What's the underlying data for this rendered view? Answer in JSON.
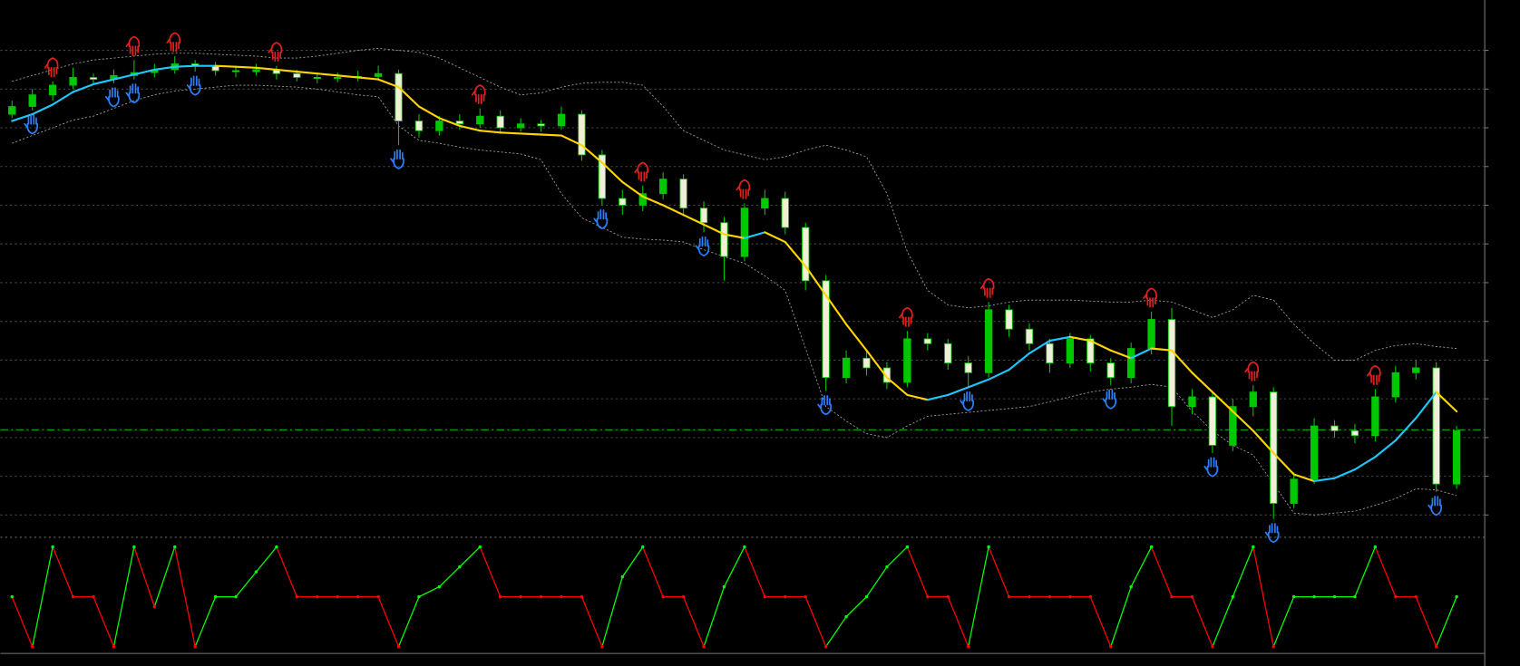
{
  "chart_data": [
    {
      "type": "candlestick",
      "ylim": [
        1.08,
        1.1072
      ],
      "yticks": [
        1.081,
        1.083,
        1.085,
        1.087,
        1.089,
        1.091,
        1.093,
        1.095,
        1.097,
        1.099,
        1.101,
        1.103,
        1.105
      ],
      "grid": true,
      "up_color": "#00c800",
      "down_color": "#f0f0d8",
      "wick_color": "#00c800",
      "open": [
        1.1017,
        1.1021,
        1.1027,
        1.1032,
        1.1036,
        1.1035,
        1.1037,
        1.10385,
        1.104,
        1.1043,
        1.1042,
        1.10395,
        1.1039,
        1.104,
        1.1038,
        1.1036,
        1.10355,
        1.1036,
        1.10365,
        1.1038,
        1.10135,
        1.10085,
        1.10135,
        1.1012,
        1.1016,
        1.101,
        1.1012,
        1.1011,
        1.1017,
        1.0996,
        1.09735,
        1.097,
        1.0976,
        1.09835,
        1.09685,
        1.0961,
        1.09435,
        1.09685,
        1.09735,
        1.09585,
        1.0931,
        1.0881,
        1.0891,
        1.0886,
        1.08785,
        1.0901,
        1.08985,
        1.08885,
        1.08835,
        1.0916,
        1.0906,
        1.08985,
        1.08885,
        1.0901,
        1.08885,
        1.0881,
        1.0896,
        1.0911,
        1.0866,
        1.0871,
        1.0846,
        1.0866,
        1.08735,
        1.0816,
        1.08285,
        1.0856,
        1.08535,
        1.0851,
        1.0871,
        1.08835,
        1.0886,
        1.0826
      ],
      "high": [
        1.1024,
        1.103,
        1.1034,
        1.1041,
        1.1038,
        1.104,
        1.1045,
        1.1043,
        1.1047,
        1.1045,
        1.1044,
        1.1042,
        1.1043,
        1.1042,
        1.104,
        1.1038,
        1.10385,
        1.10395,
        1.1042,
        1.104,
        1.1017,
        1.1016,
        1.1017,
        1.102,
        1.1019,
        1.1015,
        1.1014,
        1.1021,
        1.1019,
        1.09985,
        1.0978,
        1.098,
        1.0987,
        1.0986,
        1.0972,
        1.0964,
        1.0971,
        1.0978,
        1.0977,
        1.0961,
        1.0934,
        1.0895,
        1.0895,
        1.0889,
        1.0905,
        1.0904,
        1.0901,
        1.0892,
        1.092,
        1.09185,
        1.0909,
        1.0901,
        1.0904,
        1.0903,
        1.0891,
        1.0899,
        1.0915,
        1.0917,
        1.0875,
        1.0874,
        1.087,
        1.0877,
        1.0876,
        1.0832,
        1.086,
        1.0859,
        1.0857,
        1.0875,
        1.0887,
        1.089,
        1.0889,
        1.0856
      ],
      "low": [
        1.1015,
        1.1019,
        1.1024,
        1.103,
        1.1032,
        1.1033,
        1.1035,
        1.1036,
        1.1038,
        1.1039,
        1.1037,
        1.1036,
        1.1037,
        1.1035,
        1.1034,
        1.1033,
        1.10335,
        1.1034,
        1.1035,
        1.1001,
        1.1005,
        1.1006,
        1.1009,
        1.101,
        1.1008,
        1.1008,
        1.1008,
        1.1009,
        1.0993,
        1.097,
        1.0965,
        1.0967,
        1.0973,
        1.0965,
        1.0956,
        1.0931,
        1.0941,
        1.0965,
        1.0955,
        1.0926,
        1.0874,
        1.0878,
        1.0882,
        1.0875,
        1.0876,
        1.0895,
        1.0885,
        1.0876,
        1.0881,
        1.0902,
        1.0895,
        1.08835,
        1.0886,
        1.0884,
        1.0877,
        1.0878,
        1.0893,
        1.0856,
        1.0862,
        1.0842,
        1.0843,
        1.0861,
        1.0808,
        1.08135,
        1.0826,
        1.085,
        1.0847,
        1.0848,
        1.0868,
        1.088,
        1.0822,
        1.08235
      ],
      "close": [
        1.1021,
        1.1027,
        1.1032,
        1.1036,
        1.1035,
        1.1037,
        1.10385,
        1.104,
        1.1043,
        1.1042,
        1.10395,
        1.1039,
        1.104,
        1.1038,
        1.1036,
        1.10355,
        1.1036,
        1.10365,
        1.1038,
        1.10135,
        1.10085,
        1.10135,
        1.1012,
        1.1016,
        1.101,
        1.1012,
        1.1011,
        1.1017,
        1.0996,
        1.09735,
        1.097,
        1.0976,
        1.09835,
        1.09685,
        1.0961,
        1.09435,
        1.09685,
        1.09735,
        1.09585,
        1.0931,
        1.0881,
        1.0891,
        1.0886,
        1.08785,
        1.0901,
        1.08985,
        1.08885,
        1.08835,
        1.0916,
        1.0906,
        1.08985,
        1.08885,
        1.0901,
        1.08885,
        1.0881,
        1.0896,
        1.0911,
        1.0866,
        1.0871,
        1.0846,
        1.0866,
        1.08735,
        1.0816,
        1.08285,
        1.0856,
        1.08535,
        1.0851,
        1.0871,
        1.08835,
        1.0886,
        1.0826,
        1.08535
      ],
      "ma": {
        "rise_color": "#1ec8ff",
        "fall_color": "#ffd400",
        "values": [
          1.10135,
          1.1017,
          1.1022,
          1.10285,
          1.10325,
          1.1035,
          1.10375,
          1.104,
          1.10415,
          1.1042,
          1.1042,
          1.10415,
          1.1041,
          1.104,
          1.1039,
          1.1038,
          1.1037,
          1.1036,
          1.1035,
          1.1031,
          1.1021,
          1.1015,
          1.1011,
          1.10085,
          1.10075,
          1.1007,
          1.10065,
          1.1006,
          1.1001,
          1.0992,
          1.0982,
          1.09745,
          1.097,
          1.0965,
          1.096,
          1.0955,
          1.0953,
          1.0956,
          1.0951,
          1.09385,
          1.09235,
          1.09085,
          1.0895,
          1.0881,
          1.0872,
          1.08695,
          1.0872,
          1.0876,
          1.088,
          1.0885,
          1.08935,
          1.09,
          1.0902,
          1.09,
          1.0895,
          1.0891,
          1.0896,
          1.0895,
          1.08835,
          1.08735,
          1.08635,
          1.08535,
          1.0842,
          1.0831,
          1.08275,
          1.0829,
          1.08335,
          1.084,
          1.08485,
          1.086,
          1.08735,
          1.08635
        ]
      },
      "bands": {
        "color": "#a0a0a0",
        "upper": [
          1.1034,
          1.1037,
          1.104,
          1.1043,
          1.1045,
          1.1046,
          1.1047,
          1.1048,
          1.10485,
          1.10485,
          1.1048,
          1.10475,
          1.1047,
          1.1046,
          1.1046,
          1.1047,
          1.10485,
          1.105,
          1.1051,
          1.105,
          1.1049,
          1.1046,
          1.1041,
          1.1036,
          1.1031,
          1.1027,
          1.1028,
          1.1031,
          1.1033,
          1.10335,
          1.10335,
          1.1032,
          1.1021,
          1.10085,
          1.10035,
          1.09985,
          1.0996,
          1.09935,
          1.0995,
          1.09985,
          1.1001,
          1.09985,
          1.0995,
          1.0976,
          1.0946,
          1.0926,
          1.09185,
          1.0917,
          1.0918,
          1.092,
          1.0921,
          1.0921,
          1.0921,
          1.09205,
          1.092,
          1.092,
          1.0921,
          1.092,
          1.0916,
          1.0912,
          1.0916,
          1.09235,
          1.0921,
          1.09085,
          1.08985,
          1.089,
          1.089,
          1.0895,
          1.08975,
          1.08985,
          1.0897,
          1.0896
        ],
        "lower": [
          1.1002,
          1.1006,
          1.101,
          1.1014,
          1.1016,
          1.102,
          1.1024,
          1.1027,
          1.1029,
          1.103,
          1.1031,
          1.1032,
          1.1032,
          1.10315,
          1.1031,
          1.103,
          1.10285,
          1.1027,
          1.1026,
          1.1011,
          1.10035,
          1.1002,
          1.1,
          1.09985,
          1.09975,
          1.09965,
          1.09935,
          1.0976,
          1.09635,
          1.09585,
          1.09535,
          1.09525,
          1.0952,
          1.0951,
          1.0947,
          1.09435,
          1.094,
          1.09335,
          1.0926,
          1.0896,
          1.0866,
          1.08585,
          1.0852,
          1.085,
          1.0856,
          1.0861,
          1.0862,
          1.0863,
          1.0864,
          1.0865,
          1.0866,
          1.08685,
          1.0871,
          1.08735,
          1.0875,
          1.0876,
          1.08775,
          1.0876,
          1.08635,
          1.08535,
          1.0846,
          1.0841,
          1.0826,
          1.0811,
          1.081,
          1.0811,
          1.0812,
          1.0815,
          1.08185,
          1.08235,
          1.0823,
          1.082
        ]
      },
      "price_line": {
        "value": 1.0854,
        "color": "#00b400"
      },
      "sell_signals": [
        2,
        6,
        8,
        13,
        23,
        31,
        36,
        44,
        48,
        56,
        61,
        67
      ],
      "sell_color": "#e02020",
      "buy_signals": [
        1,
        5,
        6,
        9,
        19,
        29,
        34,
        40,
        47,
        54,
        59,
        62,
        70
      ],
      "buy_color": "#2a7fff"
    },
    {
      "type": "line",
      "ylim": [
        0,
        100
      ],
      "rise_color": "#00ff00",
      "fall_color": "#ff0000",
      "values": [
        50,
        0,
        100,
        50,
        50,
        0,
        100,
        40,
        100,
        0,
        50,
        50,
        75,
        100,
        50,
        50,
        50,
        50,
        50,
        0,
        50,
        60,
        80,
        100,
        50,
        50,
        50,
        50,
        50,
        0,
        70,
        100,
        50,
        50,
        0,
        60,
        100,
        50,
        50,
        50,
        0,
        30,
        50,
        80,
        100,
        50,
        50,
        0,
        100,
        50,
        50,
        50,
        50,
        50,
        0,
        60,
        100,
        50,
        50,
        0,
        50,
        100,
        0,
        50,
        50,
        50,
        50,
        100,
        50,
        50,
        0,
        50
      ]
    }
  ]
}
